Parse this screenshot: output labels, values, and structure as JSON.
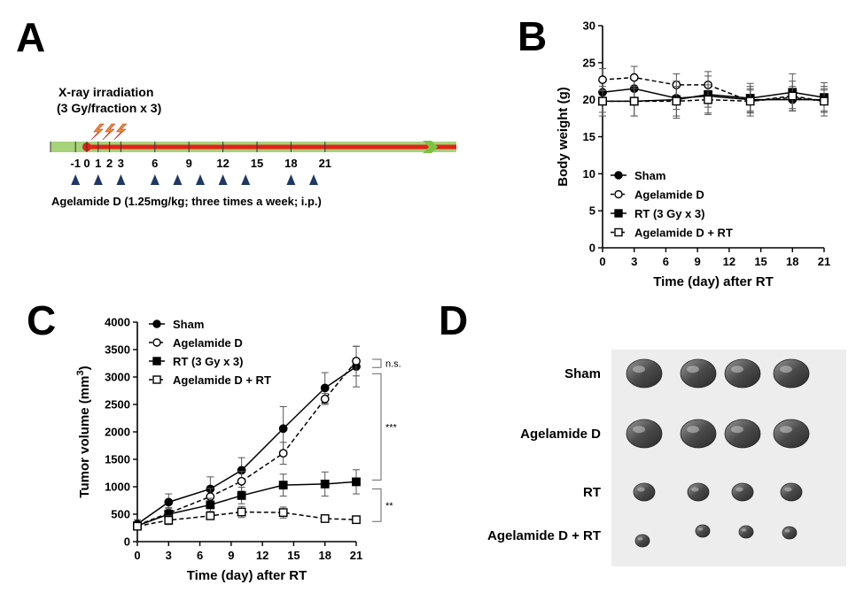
{
  "panels": {
    "A": {
      "letter": "A",
      "irradiation_label_1": "X-ray irradiation",
      "irradiation_label_2": "(3 Gy/fraction x 3)",
      "day_ticks": [
        "-1",
        "0",
        "1",
        "2",
        "3",
        "6",
        "9",
        "12",
        "15",
        "18",
        "21"
      ],
      "day_tick_values": [
        -1,
        0,
        1,
        2,
        3,
        6,
        9,
        12,
        15,
        18,
        21
      ],
      "irradiation_days": [
        0,
        1,
        2
      ],
      "injection_days": [
        -1,
        1,
        3,
        6,
        8,
        10,
        12,
        14,
        18,
        20
      ],
      "treatment_label": "Agelamide D (1.25mg/kg; three times a week; i.p.)",
      "colors": {
        "timeline_green": "#a6d27a",
        "timeline_red": "#e2231a",
        "marker": "#1f3864",
        "bolt": "#f28c28",
        "arrow": "#7dc242"
      }
    },
    "B": {
      "letter": "B",
      "legend": [
        {
          "label": "Sham",
          "marker": "filled-circle",
          "dash": false
        },
        {
          "label": "Agelamide D",
          "marker": "open-circle",
          "dash": true
        },
        {
          "label": "RT (3 Gy x 3)",
          "marker": "filled-square",
          "dash": false
        },
        {
          "label": "Agelamide D + RT",
          "marker": "open-square",
          "dash": true
        }
      ]
    },
    "C": {
      "letter": "C",
      "legend": [
        {
          "label": "Sham",
          "marker": "filled-circle",
          "dash": false
        },
        {
          "label": "Agelamide D",
          "marker": "open-circle",
          "dash": true
        },
        {
          "label": "RT (3 Gy x 3)",
          "marker": "filled-square",
          "dash": false
        },
        {
          "label": "Agelamide D + RT",
          "marker": "open-square",
          "dash": true
        }
      ],
      "significance": [
        {
          "text": "n.s.",
          "between": [
            "Sham",
            "Agelamide D"
          ]
        },
        {
          "text": "***",
          "between": [
            "Sham",
            "RT (3 Gy x 3)"
          ]
        },
        {
          "text": "**",
          "between": [
            "RT (3 Gy x 3)",
            "Agelamide D + RT"
          ]
        }
      ]
    },
    "D": {
      "letter": "D",
      "rows": [
        {
          "label": "Sham",
          "tumors": 4,
          "size": "large"
        },
        {
          "label": "Agelamide D",
          "tumors": 4,
          "size": "large"
        },
        {
          "label": "RT",
          "tumors": 4,
          "size": "medium"
        },
        {
          "label": "Agelamide D + RT",
          "tumors": 4,
          "size": "small"
        }
      ]
    }
  },
  "chart_data": [
    {
      "id": "B",
      "type": "line",
      "x": [
        0,
        3,
        7,
        10,
        14,
        18,
        21
      ],
      "xticks": [
        "0",
        "3",
        "6",
        "9",
        "12",
        "15",
        "18",
        "21"
      ],
      "xtick_values": [
        0,
        3,
        6,
        9,
        12,
        15,
        18,
        21
      ],
      "xlim": [
        0,
        21
      ],
      "yticks": [
        "0",
        "5",
        "10",
        "15",
        "20",
        "25",
        "30"
      ],
      "ytick_values": [
        0,
        5,
        10,
        15,
        20,
        25,
        30
      ],
      "ylim": [
        0,
        30
      ],
      "xlabel": "Time (day) after RT",
      "ylabel": "Body weight (g)",
      "series": [
        {
          "name": "Sham",
          "values": [
            21.0,
            21.5,
            20.2,
            20.5,
            20.0,
            20.0,
            20.0
          ],
          "errors": [
            1.5,
            1.5,
            1.5,
            1.5,
            1.5,
            1.5,
            1.5
          ]
        },
        {
          "name": "Agelamide D",
          "values": [
            22.7,
            23.0,
            22.0,
            22.0,
            19.8,
            20.3,
            19.8
          ],
          "errors": [
            1.5,
            1.5,
            1.5,
            1.8,
            1.5,
            1.5,
            1.5
          ]
        },
        {
          "name": "RT (3 Gy x 3)",
          "values": [
            19.8,
            19.8,
            20.0,
            20.7,
            20.2,
            21.0,
            20.3
          ],
          "errors": [
            1.5,
            2.0,
            2.5,
            2.5,
            2.0,
            2.5,
            2.0
          ]
        },
        {
          "name": "Agelamide D + RT",
          "values": [
            19.8,
            19.8,
            19.8,
            20.0,
            19.8,
            20.5,
            19.8
          ],
          "errors": [
            2.0,
            2.0,
            2.0,
            2.0,
            2.0,
            2.0,
            2.0
          ]
        }
      ]
    },
    {
      "id": "C",
      "type": "line",
      "x": [
        0,
        3,
        7,
        10,
        14,
        18,
        21
      ],
      "xticks": [
        "0",
        "3",
        "6",
        "9",
        "12",
        "15",
        "18",
        "21"
      ],
      "xtick_values": [
        0,
        3,
        6,
        9,
        12,
        15,
        18,
        21
      ],
      "xlim": [
        0,
        21
      ],
      "yticks": [
        "0",
        "500",
        "1000",
        "1500",
        "2000",
        "2500",
        "3000",
        "3500",
        "4000"
      ],
      "ytick_values": [
        0,
        500,
        1000,
        1500,
        2000,
        2500,
        3000,
        3500,
        4000
      ],
      "ylim": [
        0,
        4000
      ],
      "xlabel": "Time (day) after RT",
      "ylabel": "Tumor volume (mm3)",
      "series": [
        {
          "name": "Sham",
          "values": [
            320,
            720,
            960,
            1300,
            2060,
            2800,
            3190
          ],
          "errors": [
            80,
            150,
            220,
            230,
            400,
            280,
            370
          ]
        },
        {
          "name": "Agelamide D",
          "values": [
            300,
            520,
            820,
            1100,
            1610,
            2600,
            3290
          ],
          "errors": [
            60,
            100,
            150,
            180,
            200,
            100,
            270
          ]
        },
        {
          "name": "RT (3 Gy x 3)",
          "values": [
            290,
            500,
            670,
            840,
            1030,
            1050,
            1090
          ],
          "errors": [
            60,
            100,
            120,
            150,
            200,
            220,
            220
          ]
        },
        {
          "name": "Agelamide D + RT",
          "values": [
            280,
            390,
            470,
            540,
            530,
            420,
            400
          ],
          "errors": [
            50,
            80,
            60,
            100,
            100,
            40,
            40
          ]
        }
      ]
    }
  ]
}
